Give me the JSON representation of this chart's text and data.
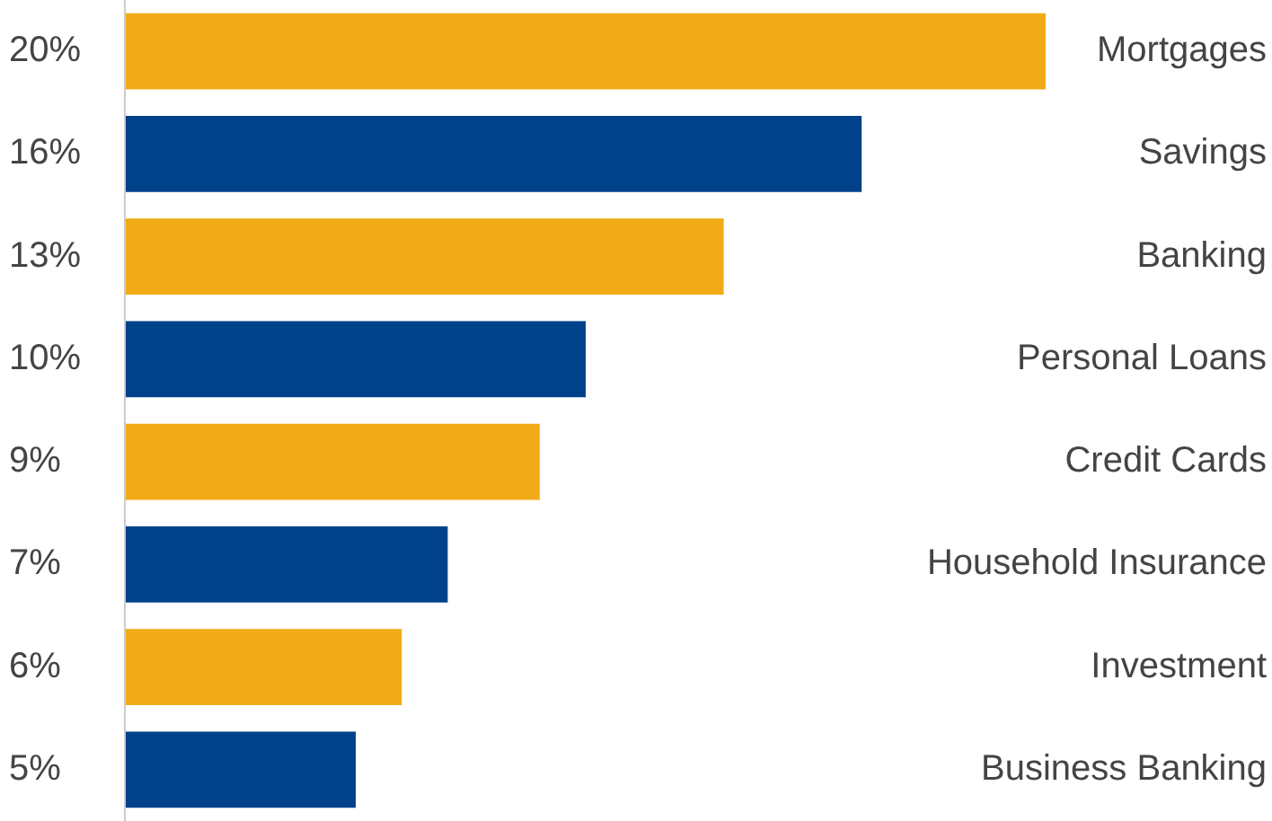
{
  "chart_data": {
    "type": "bar",
    "orientation": "horizontal",
    "categories": [
      "Mortgages",
      "Savings",
      "Banking",
      "Personal Loans",
      "Credit Cards",
      "Household Insurance",
      "Investment",
      "Business Banking"
    ],
    "values": [
      20,
      16,
      13,
      10,
      9,
      7,
      6,
      5
    ],
    "colors": [
      "#f0ab16",
      "#00428a",
      "#f0ab16",
      "#00428a",
      "#f0ab16",
      "#00428a",
      "#f0ab16",
      "#00428a"
    ],
    "value_labels": [
      "20%",
      "16%",
      "13%",
      "10%",
      "9%",
      "7%",
      "6%",
      "5%"
    ],
    "xlim": [
      0,
      20
    ],
    "tick_labels": "y"
  }
}
